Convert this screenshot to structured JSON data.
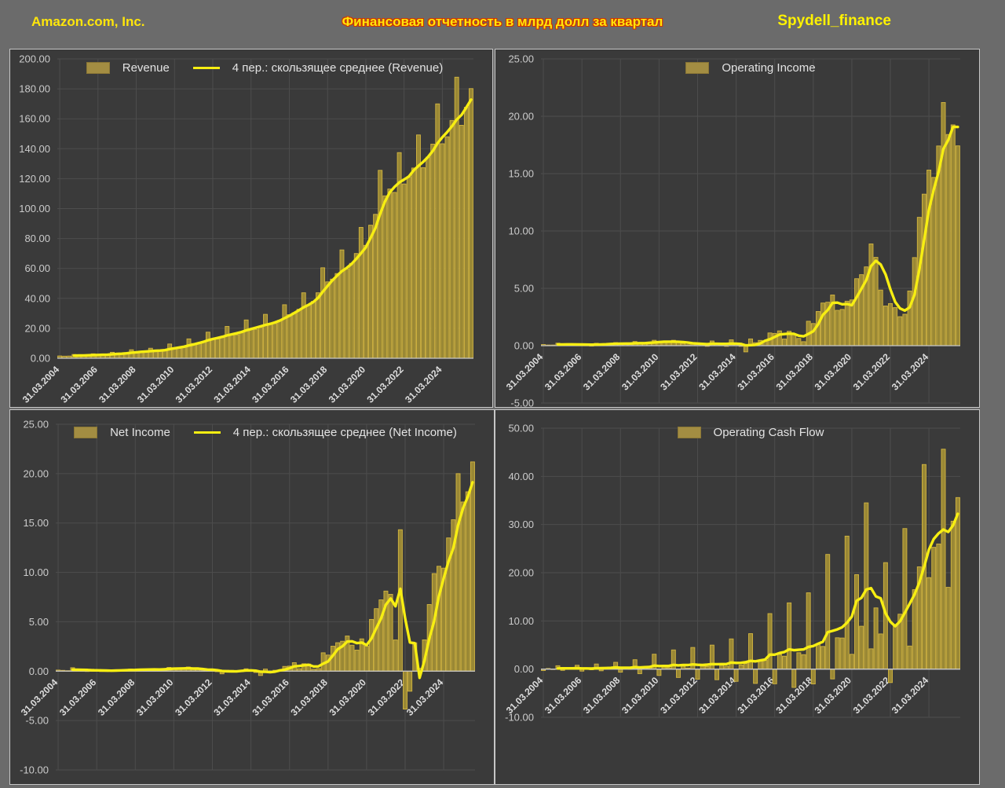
{
  "header": {
    "company": "Amazon.com, Inc.",
    "title": "Финансовая отчетность в млрд долл за квартал",
    "brand": "Spydell_finance"
  },
  "colors": {
    "page_bg": "#6b6b6b",
    "panel_bg": "#3a3a3a",
    "panel_border": "#c6c6c6",
    "grid": "#4d4d4d",
    "zero_line": "#c8c8c8",
    "bar_fill": "#9a8835",
    "bar_stroke": "#d2b540",
    "ma_line": "#f7ee12",
    "y_label": "#cbcbcb",
    "x_label": "#dddddd",
    "legend_text": "#e3e3e3",
    "company_color": "#ffe60a",
    "title_color": "#ffe60a",
    "title_outline": "#cf3300",
    "brand_color": "#fff200"
  },
  "x_axis": {
    "tick_labels": [
      "31.03.2004",
      "31.03.2006",
      "31.03.2008",
      "31.03.2010",
      "31.03.2012",
      "31.03.2014",
      "31.03.2016",
      "31.03.2018",
      "31.03.2020",
      "31.03.2022",
      "31.03.2024"
    ],
    "tick_every_quarters": 8,
    "n_quarters": 87,
    "period": "quarterly, 31.03.2004 - 30.09.2025"
  },
  "chart_data": [
    {
      "type": "bar",
      "title": "Revenue",
      "legend": [
        "Revenue",
        "4 пер.: скользящее среднее (Revenue)"
      ],
      "ma_window": 4,
      "show_ma": true,
      "ylim": [
        0,
        200
      ],
      "y_step": 20,
      "unit": "млрд долл",
      "values": [
        1.53,
        1.39,
        1.46,
        2.54,
        1.9,
        1.75,
        1.86,
        2.98,
        2.28,
        2.14,
        2.31,
        3.99,
        3.02,
        2.89,
        3.26,
        5.67,
        4.13,
        4.06,
        4.26,
        6.7,
        4.89,
        4.65,
        5.45,
        9.52,
        7.13,
        6.57,
        7.56,
        12.95,
        9.86,
        9.91,
        10.88,
        17.43,
        13.18,
        12.83,
        13.81,
        21.27,
        16.07,
        15.7,
        17.09,
        25.59,
        19.74,
        19.34,
        20.58,
        29.33,
        22.72,
        23.18,
        25.36,
        35.75,
        29.13,
        30.4,
        32.71,
        43.74,
        35.71,
        37.96,
        43.74,
        60.45,
        51.04,
        52.89,
        56.58,
        72.38,
        59.7,
        63.4,
        69.98,
        87.44,
        75.45,
        88.91,
        96.15,
        125.56,
        108.52,
        113.08,
        110.81,
        137.41,
        116.44,
        121.23,
        127.1,
        149.2,
        127.36,
        134.38,
        143.08,
        169.96,
        143.31,
        147.98,
        158.88,
        187.79,
        155.67,
        167.7,
        180.17
      ]
    },
    {
      "type": "bar",
      "title": "Operating Income",
      "legend": [
        "Operating Income"
      ],
      "ma_window": 4,
      "show_ma": true,
      "ylim": [
        -5,
        25
      ],
      "y_step": 5,
      "unit": "млрд долл",
      "values": [
        0.1,
        0.06,
        0.06,
        0.22,
        0.11,
        0.08,
        0.06,
        0.18,
        0.1,
        0.05,
        0.02,
        0.21,
        0.15,
        0.12,
        0.12,
        0.27,
        0.2,
        0.16,
        0.12,
        0.36,
        0.24,
        0.16,
        0.25,
        0.47,
        0.39,
        0.27,
        0.27,
        0.47,
        0.32,
        0.2,
        0.08,
        0.26,
        0.19,
        0.11,
        -0.03,
        0.41,
        0.18,
        0.08,
        -0.03,
        0.51,
        0.15,
        -0.02,
        -0.54,
        0.59,
        0.26,
        0.46,
        0.41,
        1.11,
        1.07,
        1.29,
        0.58,
        1.26,
        1.01,
        0.63,
        0.35,
        2.13,
        1.93,
        2.98,
        3.72,
        3.79,
        4.42,
        3.08,
        3.16,
        3.88,
        3.99,
        5.84,
        6.19,
        6.87,
        8.87,
        7.7,
        4.85,
        3.46,
        3.67,
        3.32,
        2.53,
        2.74,
        4.77,
        7.68,
        11.19,
        13.21,
        15.31,
        14.67,
        17.41,
        21.2,
        18.41,
        19.25,
        17.42
      ]
    },
    {
      "type": "bar",
      "title": "Net Income",
      "legend": [
        "Net Income",
        "4 пер.: скользящее среднее (Net Income)"
      ],
      "ma_window": 4,
      "show_ma": true,
      "ylim": [
        -10,
        25
      ],
      "y_step": 5,
      "unit": "млрд долл",
      "values": [
        0.11,
        0.08,
        0.05,
        0.35,
        0.08,
        0.05,
        0.03,
        0.2,
        0.05,
        0.02,
        0.02,
        0.1,
        0.11,
        0.08,
        0.08,
        0.21,
        0.14,
        0.16,
        0.12,
        0.23,
        0.18,
        0.14,
        0.2,
        0.38,
        0.3,
        0.21,
        0.23,
        0.42,
        0.2,
        0.19,
        0.06,
        0.18,
        0.13,
        0.01,
        -0.27,
        0.1,
        0.08,
        -0.01,
        -0.04,
        0.24,
        0.11,
        -0.13,
        -0.44,
        0.21,
        -0.06,
        0.09,
        0.08,
        0.48,
        0.51,
        0.86,
        0.25,
        0.75,
        0.72,
        0.2,
        0.26,
        1.86,
        1.63,
        2.53,
        2.88,
        3.03,
        3.56,
        2.63,
        2.13,
        3.27,
        2.54,
        5.24,
        6.33,
        7.22,
        8.11,
        7.78,
        3.16,
        14.32,
        -3.84,
        -2.03,
        2.87,
        0.28,
        3.17,
        6.75,
        9.88,
        10.62,
        10.43,
        13.49,
        15.33,
        20.0,
        17.13,
        18.16,
        21.19
      ]
    },
    {
      "type": "bar",
      "title": "Operating Cash Flow",
      "legend": [
        "Operating Cash Flow"
      ],
      "ma_window": 4,
      "show_ma": true,
      "ylim": [
        -10,
        50
      ],
      "y_step": 10,
      "unit": "млрд долл",
      "values": [
        -0.3,
        0.13,
        0.04,
        0.7,
        -0.26,
        0.12,
        0.07,
        0.8,
        -0.42,
        0.1,
        -0.04,
        1.06,
        -0.35,
        0.21,
        0.13,
        1.41,
        -0.64,
        0.28,
        0.1,
        1.95,
        -0.95,
        0.49,
        0.28,
        3.09,
        -1.32,
        0.56,
        0.28,
        3.98,
        -1.74,
        0.92,
        0.23,
        4.49,
        -2.1,
        0.75,
        0.55,
        4.98,
        -2.2,
        0.8,
        0.6,
        6.27,
        -2.54,
        0.86,
        1.16,
        7.36,
        -2.97,
        1.64,
        1.85,
        11.52,
        -3.05,
        3.06,
        2.68,
        13.75,
        -3.8,
        3.4,
        3.0,
        15.83,
        -3.08,
        5.3,
        4.7,
        23.8,
        -2.04,
        6.5,
        6.45,
        27.6,
        3.07,
        19.6,
        8.9,
        34.5,
        4.21,
        12.7,
        7.3,
        22.1,
        -2.79,
        8.97,
        11.4,
        29.17,
        4.79,
        16.48,
        21.22,
        42.46,
        18.99,
        25.28,
        25.97,
        45.64,
        16.97,
        30.7,
        35.6
      ]
    }
  ]
}
